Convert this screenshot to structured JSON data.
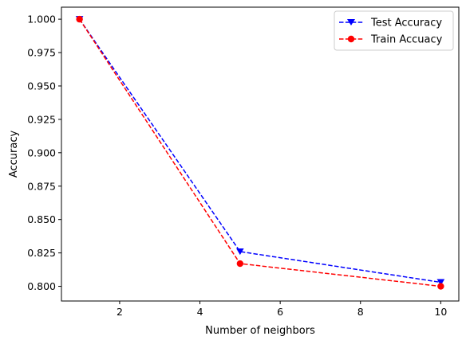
{
  "chart_data": {
    "type": "line",
    "title": "",
    "xlabel": "Number of neighbors",
    "ylabel": "Accuracy",
    "xlim": [
      0.55,
      10.45
    ],
    "ylim": [
      0.789,
      1.009
    ],
    "x_ticks": [
      2,
      4,
      6,
      8,
      10
    ],
    "x_tick_labels": [
      "2",
      "4",
      "6",
      "8",
      "10"
    ],
    "y_ticks": [
      0.8,
      0.825,
      0.85,
      0.875,
      0.9,
      0.925,
      0.95,
      0.975,
      1.0
    ],
    "y_tick_labels": [
      "0.800",
      "0.825",
      "0.850",
      "0.875",
      "0.900",
      "0.925",
      "0.950",
      "0.975",
      "1.000"
    ],
    "grid": false,
    "legend_position": "top-right",
    "series": [
      {
        "name": "Test Accuracy",
        "x": [
          1,
          5,
          10
        ],
        "values": [
          1.0,
          0.826,
          0.803
        ],
        "color": "#0000ff",
        "marker": "triangle-down",
        "linestyle": "dashed"
      },
      {
        "name": "Train Accuacy",
        "x": [
          1,
          5,
          10
        ],
        "values": [
          1.0,
          0.817,
          0.8
        ],
        "color": "#ff0000",
        "marker": "circle",
        "linestyle": "dashed"
      }
    ]
  }
}
